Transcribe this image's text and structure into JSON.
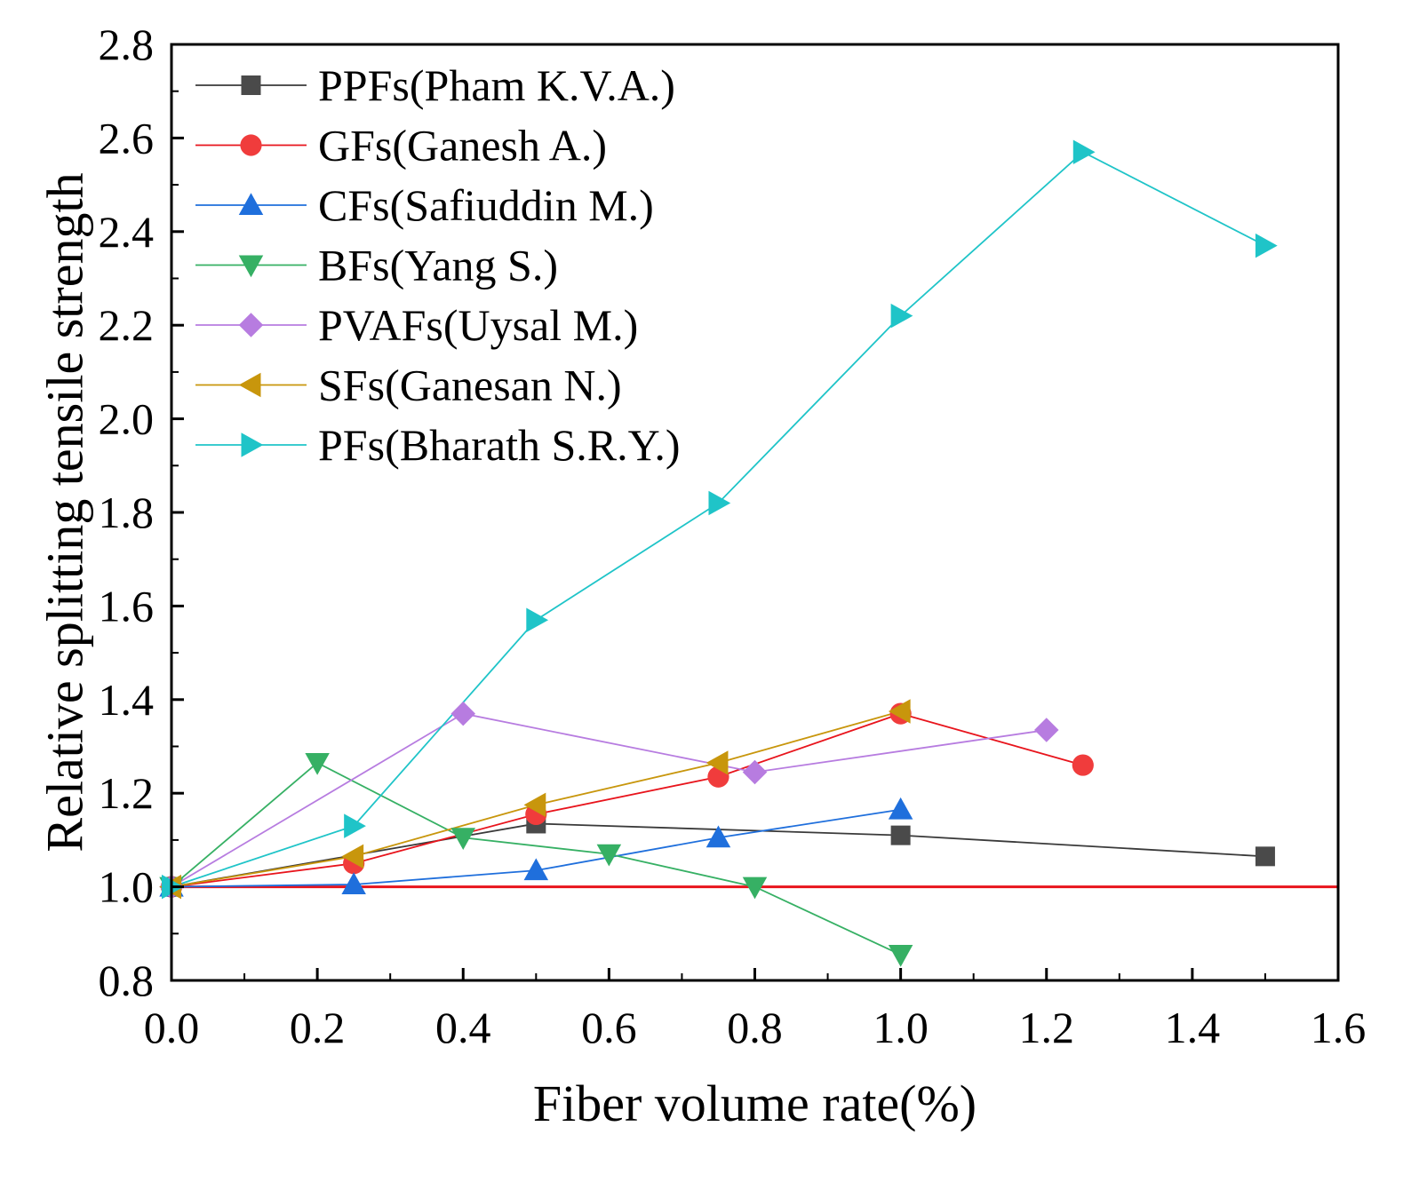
{
  "chart_data": {
    "type": "line",
    "title": "",
    "xlabel": "Fiber volume rate(%)",
    "ylabel": "Relative splitting tensile strength",
    "xlim": [
      0.0,
      1.6
    ],
    "ylim": [
      0.8,
      2.8
    ],
    "xticks": [
      0.0,
      0.2,
      0.4,
      0.6,
      0.8,
      1.0,
      1.2,
      1.4,
      1.6
    ],
    "xtick_labels": [
      "0.0",
      "0.2",
      "0.4",
      "0.6",
      "0.8",
      "1.0",
      "1.2",
      "1.4",
      "1.6"
    ],
    "yticks": [
      0.8,
      1.0,
      1.2,
      1.4,
      1.6,
      1.8,
      2.0,
      2.2,
      2.4,
      2.6,
      2.8
    ],
    "ytick_labels": [
      "0.8",
      "1.0",
      "1.2",
      "1.4",
      "1.6",
      "1.8",
      "2.0",
      "2.2",
      "2.4",
      "2.6",
      "2.8"
    ],
    "grid": false,
    "legend_position": "top-left",
    "reference_line": {
      "y": 1.0,
      "color": "#e8141c"
    },
    "series": [
      {
        "name": "PPFs(Pham K.V.A.)",
        "marker": "square",
        "color": "#4a4a4a",
        "line_color": "#3a3a3a",
        "x": [
          0.0,
          0.5,
          1.0,
          1.5
        ],
        "y": [
          1.0,
          1.135,
          1.11,
          1.065
        ]
      },
      {
        "name": "GFs(Ganesh A.)",
        "marker": "circle",
        "color": "#f03c3c",
        "line_color": "#e8141c",
        "x": [
          0.0,
          0.25,
          0.5,
          0.75,
          1.0,
          1.25
        ],
        "y": [
          1.0,
          1.05,
          1.155,
          1.235,
          1.37,
          1.26
        ]
      },
      {
        "name": "CFs(Safiuddin M.)",
        "marker": "triangle-up",
        "color": "#1f6fdc",
        "line_color": "#1f6fdc",
        "x": [
          0.0,
          0.25,
          0.5,
          0.75,
          1.0
        ],
        "y": [
          1.0,
          1.005,
          1.035,
          1.105,
          1.165
        ]
      },
      {
        "name": "BFs(Yang S.)",
        "marker": "triangle-down",
        "color": "#36b064",
        "line_color": "#36b064",
        "x": [
          0.0,
          0.2,
          0.4,
          0.6,
          0.8,
          1.0
        ],
        "y": [
          1.0,
          1.265,
          1.105,
          1.07,
          1.0,
          0.855
        ]
      },
      {
        "name": "PVAFs(Uysal M.)",
        "marker": "diamond",
        "color": "#b77ce0",
        "line_color": "#b77ce0",
        "x": [
          0.0,
          0.4,
          0.8,
          1.2
        ],
        "y": [
          1.0,
          1.37,
          1.245,
          1.335
        ]
      },
      {
        "name": "SFs(Ganesan N.)",
        "marker": "triangle-left",
        "color": "#c8960c",
        "line_color": "#c8960c",
        "x": [
          0.0,
          0.25,
          0.5,
          0.75,
          1.0
        ],
        "y": [
          1.0,
          1.065,
          1.175,
          1.265,
          1.375
        ]
      },
      {
        "name": "PFs(Bharath S.R.Y.)",
        "marker": "triangle-right",
        "color": "#1fc4c8",
        "line_color": "#1fc4c8",
        "x": [
          0.0,
          0.25,
          0.5,
          0.75,
          1.0,
          1.25,
          1.5
        ],
        "y": [
          1.0,
          1.13,
          1.57,
          1.82,
          2.22,
          2.57,
          2.37
        ]
      }
    ]
  }
}
